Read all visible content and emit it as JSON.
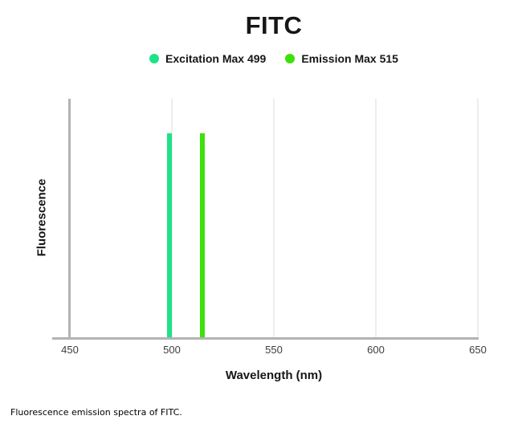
{
  "title": "FITC",
  "legend": {
    "items": [
      {
        "label": "Excitation Max 499",
        "color": "#1ee287"
      },
      {
        "label": "Emission Max 515",
        "color": "#3ce10a"
      }
    ]
  },
  "axes": {
    "x_label": "Wavelength (nm)",
    "y_label": "Fluorescence"
  },
  "caption": "Fluorescence emission spectra of FITC.",
  "chart_data": {
    "type": "bar",
    "title": "FITC",
    "xlabel": "Wavelength (nm)",
    "ylabel": "Fluorescence",
    "xlim": [
      450,
      650
    ],
    "x_ticks": [
      450,
      500,
      550,
      600,
      650
    ],
    "grid": "vertical light gridlines at 500, 550, 600 and 650 nm; none at 450 (y-axis)",
    "legend_position": "top-center",
    "series": [
      {
        "name": "Excitation Max 499",
        "wavelength": 499,
        "relative_height": 0.855,
        "color": "#1ee287"
      },
      {
        "name": "Emission Max 515",
        "wavelength": 515,
        "relative_height": 0.855,
        "color": "#3ce10a"
      }
    ],
    "axis_color": "#b3b3b3",
    "gridline_color": "#ededed"
  }
}
